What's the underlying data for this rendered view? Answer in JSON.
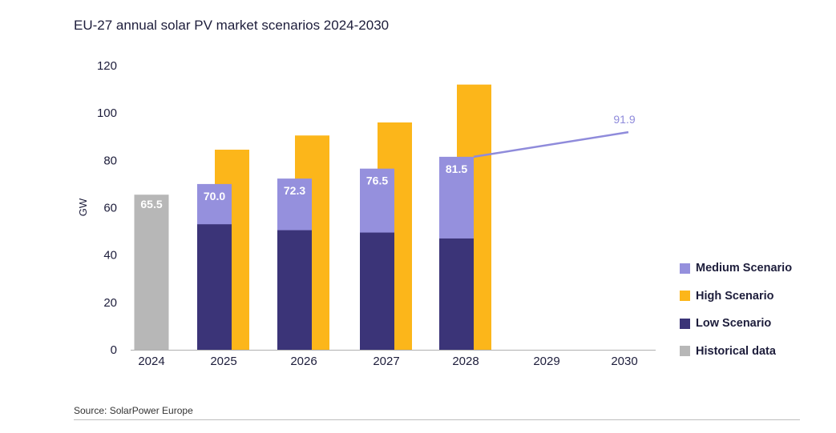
{
  "title": "EU-27 annual solar PV market scenarios 2024-2030",
  "source": "Source: SolarPower Europe",
  "colors": {
    "historical": "#b7b7b7",
    "low": "#3b3478",
    "medium": "#9590dd",
    "high": "#fcb61a",
    "line": "#8f8bdb",
    "axis": "#b0b0b0"
  },
  "legend": [
    {
      "label": "Medium Scenario",
      "color": "#9590dd"
    },
    {
      "label": "High Scenario",
      "color": "#fcb61a"
    },
    {
      "label": "Low Scenario",
      "color": "#3b3478"
    },
    {
      "label": "Historical data",
      "color": "#b7b7b7"
    }
  ],
  "chart_data": {
    "type": "bar",
    "title": "EU-27 annual solar PV market scenarios 2024-2030",
    "ylabel": "GW",
    "xlabel": "",
    "ylim": [
      0,
      120
    ],
    "yticks": [
      0,
      20,
      40,
      60,
      80,
      100,
      120
    ],
    "categories": [
      "2024",
      "2025",
      "2026",
      "2027",
      "2028",
      "2029",
      "2030"
    ],
    "series": [
      {
        "name": "Historical data",
        "values": [
          65.5,
          null,
          null,
          null,
          null,
          null,
          null
        ]
      },
      {
        "name": "Low Scenario",
        "values": [
          null,
          53,
          50.5,
          49.5,
          47,
          null,
          null
        ]
      },
      {
        "name": "Medium Scenario",
        "values": [
          null,
          70.0,
          72.3,
          76.5,
          81.5,
          null,
          91.9
        ]
      },
      {
        "name": "High Scenario",
        "values": [
          null,
          84.5,
          90.5,
          96,
          112,
          null,
          null
        ]
      }
    ],
    "data_labels": [
      {
        "category": "2024",
        "text": "65.5"
      },
      {
        "category": "2025",
        "text": "70.0"
      },
      {
        "category": "2026",
        "text": "72.3"
      },
      {
        "category": "2027",
        "text": "76.5"
      },
      {
        "category": "2028",
        "text": "81.5"
      },
      {
        "category": "2030",
        "text": "91.9"
      }
    ],
    "grid": false,
    "legend_position": "right"
  }
}
